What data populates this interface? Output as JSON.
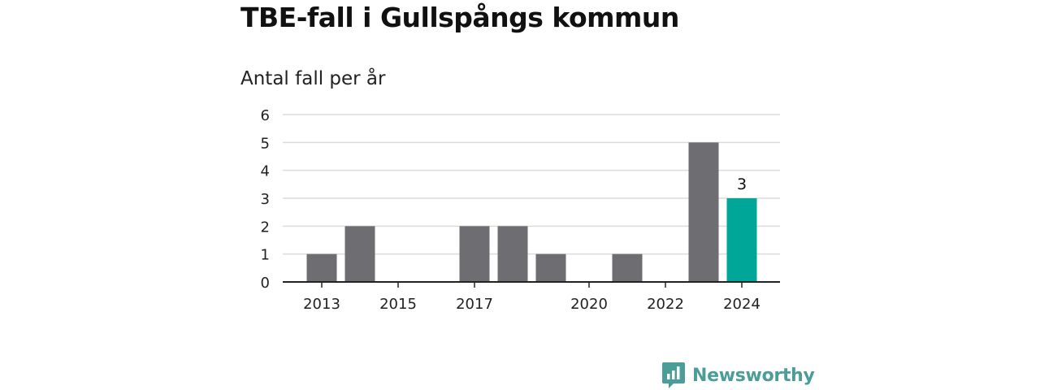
{
  "title": "TBE-fall i Gullspångs kommun",
  "subtitle": "Antal fall per år",
  "brand": {
    "name": "Newsworthy",
    "color": "#4a9d98",
    "icon": "newsworthy-logo-icon"
  },
  "colors": {
    "bar": "#6e6d72",
    "highlight": "#00a698",
    "grid": "#dcdcdc",
    "axis": "#222222"
  },
  "chart_data": {
    "type": "bar",
    "categories": [
      "2013",
      "2014",
      "2015",
      "2016",
      "2017",
      "2018",
      "2019",
      "2020",
      "2021",
      "2022",
      "2023",
      "2024"
    ],
    "values": [
      1,
      2,
      0,
      0,
      2,
      2,
      1,
      0,
      1,
      0,
      5,
      3
    ],
    "x_tick_labels": [
      "2013",
      "2015",
      "2017",
      "2020",
      "2022",
      "2024"
    ],
    "y_ticks": [
      0,
      1,
      2,
      3,
      4,
      5,
      6
    ],
    "ylim": [
      0,
      6
    ],
    "highlight_category": "2024",
    "data_labels": [
      {
        "category": "2024",
        "text": "3"
      }
    ],
    "grid": true,
    "legend": "none"
  }
}
